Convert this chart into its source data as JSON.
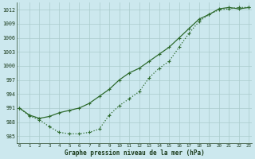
{
  "xlabel": "Graphe pression niveau de la mer (hPa)",
  "bg_color": "#cce8ee",
  "grid_color": "#aacccc",
  "line_color": "#2d6a2d",
  "x_ticks": [
    0,
    1,
    2,
    3,
    4,
    5,
    6,
    7,
    8,
    9,
    10,
    11,
    12,
    13,
    14,
    15,
    16,
    17,
    18,
    19,
    20,
    21,
    22,
    23
  ],
  "y_ticks": [
    985,
    988,
    991,
    994,
    997,
    1000,
    1003,
    1006,
    1009,
    1012
  ],
  "ylim": [
    983.5,
    1013.5
  ],
  "xlim": [
    -0.3,
    23.3
  ],
  "line1_x": [
    0,
    1,
    2,
    3,
    4,
    5,
    6,
    7,
    8,
    9,
    10,
    11,
    12,
    13,
    14,
    15,
    16,
    17,
    18,
    19,
    20,
    21,
    22,
    23
  ],
  "line1_y": [
    991.0,
    989.5,
    988.8,
    989.2,
    990.0,
    990.5,
    991.0,
    992.0,
    993.5,
    995.0,
    997.0,
    998.5,
    999.5,
    1001.0,
    1002.5,
    1004.0,
    1006.0,
    1008.0,
    1010.0,
    1011.0,
    1012.2,
    1012.5,
    1012.2,
    1012.5
  ],
  "line2_x": [
    0,
    1,
    2,
    3,
    4,
    5,
    6,
    7,
    8,
    9,
    10,
    11,
    12,
    13,
    14,
    15,
    16,
    17,
    18,
    19,
    20,
    21,
    22,
    23
  ],
  "line2_y": [
    991.0,
    989.3,
    988.5,
    987.0,
    985.8,
    985.5,
    985.5,
    985.8,
    986.5,
    989.5,
    991.5,
    993.0,
    994.5,
    997.5,
    999.5,
    1001.0,
    1004.0,
    1007.0,
    1009.5,
    1011.0,
    1012.0,
    1012.2,
    1012.5,
    1012.5
  ]
}
